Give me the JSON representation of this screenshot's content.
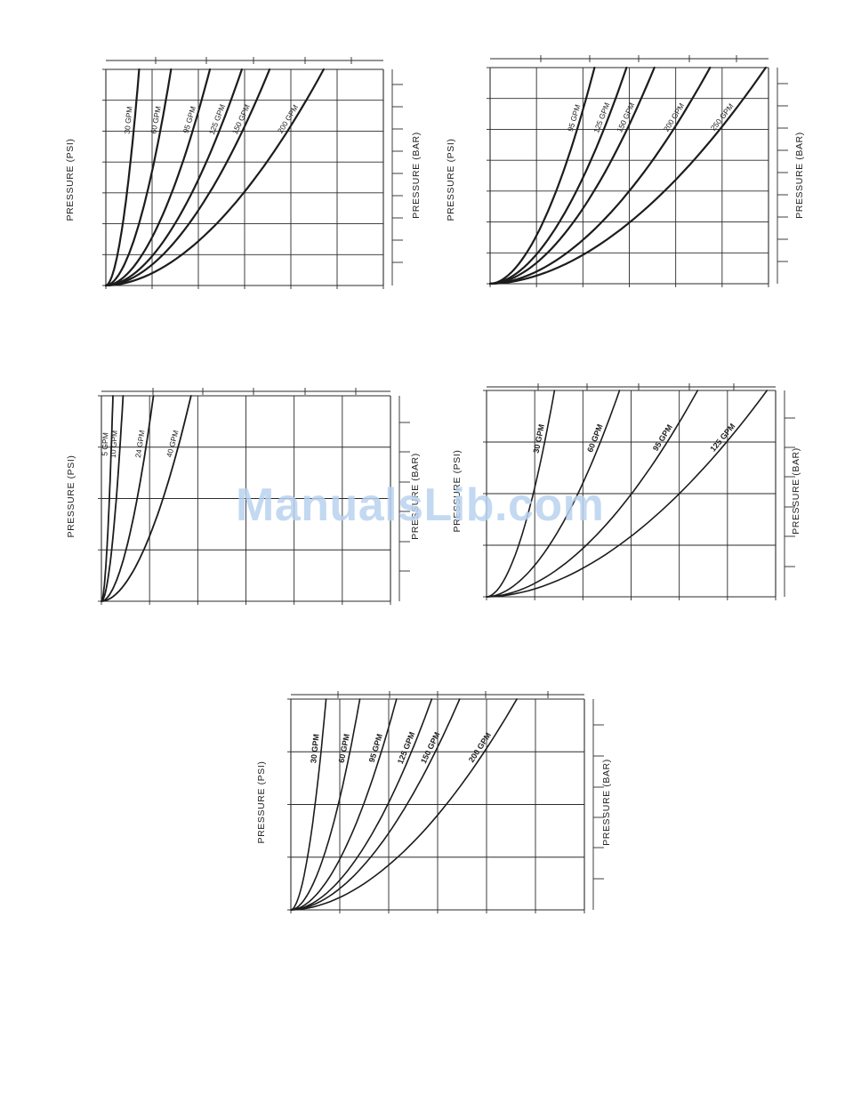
{
  "watermark": "ManualsLib.com",
  "colors": {
    "ink": "#1c1c1c",
    "grid": "#2a2a2a",
    "watermark": "#b9d3ef"
  },
  "chart_data": [
    {
      "id": "chart-1",
      "type": "line",
      "ylabel_left": "PRESSURE (PSI)",
      "ylabel_right": "PRESSURE (BAR)",
      "bold_labels": false,
      "grid": {
        "cols": 6,
        "rows": 7
      },
      "series": [
        {
          "name": "30 GPM",
          "reach_x": 0.12
        },
        {
          "name": "60 GPM",
          "reach_x": 0.235
        },
        {
          "name": "95 GPM",
          "reach_x": 0.375
        },
        {
          "name": "125 GPM",
          "reach_x": 0.49
        },
        {
          "name": "150 GPM",
          "reach_x": 0.59
        },
        {
          "name": "200 GPM",
          "reach_x": 0.785
        }
      ]
    },
    {
      "id": "chart-2",
      "type": "line",
      "ylabel_left": "PRESSURE (PSI)",
      "ylabel_right": "PRESSURE (BAR)",
      "bold_labels": false,
      "grid": {
        "cols": 6,
        "rows": 7
      },
      "series": [
        {
          "name": "95 GPM",
          "reach_x": 0.375
        },
        {
          "name": "125 GPM",
          "reach_x": 0.49
        },
        {
          "name": "150 GPM",
          "reach_x": 0.59
        },
        {
          "name": "200 GPM",
          "reach_x": 0.79
        },
        {
          "name": "250 GPM",
          "reach_x": 0.99
        }
      ]
    },
    {
      "id": "chart-3",
      "type": "line",
      "ylabel_left": "PRESSURE (PSI)",
      "ylabel_right": "PRESSURE (BAR)",
      "bold_labels": false,
      "grid": {
        "cols": 6,
        "rows": 4
      },
      "series": [
        {
          "name": "5 GPM",
          "reach_x": 0.04
        },
        {
          "name": "10 GPM",
          "reach_x": 0.075
        },
        {
          "name": "24 GPM",
          "reach_x": 0.18
        },
        {
          "name": "40 GPM",
          "reach_x": 0.31
        }
      ]
    },
    {
      "id": "chart-4",
      "type": "line",
      "ylabel_left": "PRESSURE (PSI)",
      "ylabel_right": "PRESSURE (BAR)",
      "bold_labels": true,
      "grid": {
        "cols": 6,
        "rows": 4
      },
      "series": [
        {
          "name": "30 GPM",
          "reach_x": 0.235
        },
        {
          "name": "60 GPM",
          "reach_x": 0.46
        },
        {
          "name": "95 GPM",
          "reach_x": 0.73
        },
        {
          "name": "125 GPM",
          "reach_x": 0.97
        }
      ]
    },
    {
      "id": "chart-5",
      "type": "line",
      "ylabel_left": "PRESSURE (PSI)",
      "ylabel_right": "PRESSURE (BAR)",
      "bold_labels": true,
      "grid": {
        "cols": 6,
        "rows": 4
      },
      "series": [
        {
          "name": "30 GPM",
          "reach_x": 0.12
        },
        {
          "name": "60 GPM",
          "reach_x": 0.235
        },
        {
          "name": "95 GPM",
          "reach_x": 0.36
        },
        {
          "name": "125 GPM",
          "reach_x": 0.48
        },
        {
          "name": "150 GPM",
          "reach_x": 0.575
        },
        {
          "name": "200 GPM",
          "reach_x": 0.77
        }
      ]
    }
  ]
}
